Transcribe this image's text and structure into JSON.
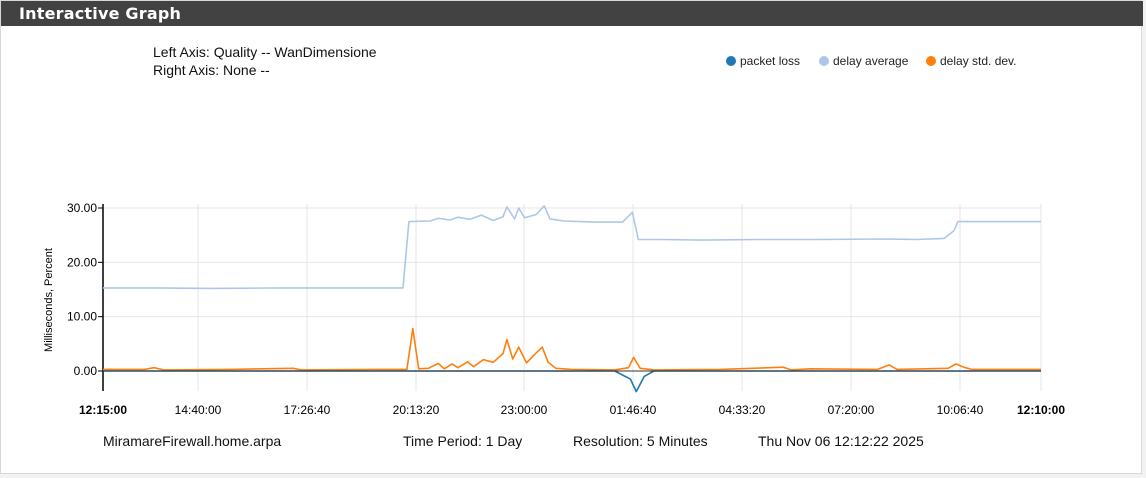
{
  "panel": {
    "title": "Interactive Graph"
  },
  "axis_info": {
    "left": "Left Axis: Quality -- WanDimensione",
    "right": "Right Axis: None --"
  },
  "footer": {
    "host": "MiramareFirewall.home.arpa",
    "period": "Time Period: 1 Day",
    "resolution": "Resolution: 5 Minutes",
    "timestamp": "Thu Nov 06 12:12:22 2025"
  },
  "chart_data": {
    "type": "line",
    "ylabel": "Milliseconds, Percent",
    "ylim": [
      -3.8,
      30.8
    ],
    "yticks": [
      "30.00",
      "20.00",
      "10.00",
      "0.00"
    ],
    "xticks": [
      "12:15:00",
      "14:40:00",
      "17:26:40",
      "20:13:20",
      "23:00:00",
      "01:46:40",
      "04:33:20",
      "07:20:00",
      "10:06:40",
      "12:10:00"
    ],
    "grid": true,
    "legend_position": "top-right",
    "colors": {
      "packet_loss": "#1f77b4",
      "delay_average": "#aec7e8",
      "delay_std_dev": "#ff7f0e"
    },
    "series": [
      {
        "name": "packet loss",
        "points": [
          [
            12.25,
            0
          ],
          [
            25.3,
            0
          ],
          [
            25.7,
            -1.5
          ],
          [
            25.85,
            -3.8
          ],
          [
            26.05,
            -1.0
          ],
          [
            26.3,
            0
          ],
          [
            36.17,
            0
          ]
        ]
      },
      {
        "name": "delay average",
        "points": [
          [
            12.25,
            15.3
          ],
          [
            13.5,
            15.3
          ],
          [
            15.0,
            15.2
          ],
          [
            17.0,
            15.3
          ],
          [
            19.0,
            15.3
          ],
          [
            19.9,
            15.3
          ],
          [
            20.05,
            27.5
          ],
          [
            20.6,
            27.6
          ],
          [
            20.8,
            28.1
          ],
          [
            21.1,
            27.8
          ],
          [
            21.3,
            28.3
          ],
          [
            21.6,
            27.9
          ],
          [
            21.9,
            28.7
          ],
          [
            22.2,
            27.7
          ],
          [
            22.45,
            28.4
          ],
          [
            22.55,
            30.2
          ],
          [
            22.75,
            28.0
          ],
          [
            22.85,
            30.0
          ],
          [
            23.0,
            28.2
          ],
          [
            23.3,
            28.8
          ],
          [
            23.5,
            30.4
          ],
          [
            23.65,
            28.0
          ],
          [
            24.0,
            27.6
          ],
          [
            24.8,
            27.4
          ],
          [
            25.5,
            27.4
          ],
          [
            25.75,
            29.2
          ],
          [
            25.9,
            24.2
          ],
          [
            26.5,
            24.2
          ],
          [
            27.5,
            24.1
          ],
          [
            29.0,
            24.2
          ],
          [
            30.5,
            24.2
          ],
          [
            32.2,
            24.3
          ],
          [
            33.0,
            24.2
          ],
          [
            33.7,
            24.4
          ],
          [
            33.95,
            25.8
          ],
          [
            34.05,
            27.5
          ],
          [
            35.0,
            27.5
          ],
          [
            36.17,
            27.5
          ]
        ]
      },
      {
        "name": "delay std. dev.",
        "points": [
          [
            12.25,
            0.3
          ],
          [
            13.3,
            0.3
          ],
          [
            13.55,
            0.6
          ],
          [
            13.8,
            0.2
          ],
          [
            15.5,
            0.3
          ],
          [
            17.1,
            0.5
          ],
          [
            17.3,
            0.2
          ],
          [
            19.3,
            0.3
          ],
          [
            20.0,
            0.3
          ],
          [
            20.15,
            7.8
          ],
          [
            20.3,
            0.4
          ],
          [
            20.55,
            0.5
          ],
          [
            20.8,
            1.4
          ],
          [
            20.95,
            0.4
          ],
          [
            21.15,
            1.3
          ],
          [
            21.3,
            0.6
          ],
          [
            21.55,
            1.7
          ],
          [
            21.7,
            0.8
          ],
          [
            21.95,
            2.1
          ],
          [
            22.2,
            1.6
          ],
          [
            22.45,
            3.2
          ],
          [
            22.55,
            5.8
          ],
          [
            22.7,
            2.2
          ],
          [
            22.85,
            4.4
          ],
          [
            23.05,
            1.5
          ],
          [
            23.25,
            3.0
          ],
          [
            23.45,
            4.4
          ],
          [
            23.6,
            1.6
          ],
          [
            23.8,
            0.5
          ],
          [
            24.2,
            0.3
          ],
          [
            25.3,
            0.2
          ],
          [
            25.65,
            0.6
          ],
          [
            25.78,
            2.5
          ],
          [
            25.95,
            0.5
          ],
          [
            26.3,
            0.2
          ],
          [
            28.0,
            0.3
          ],
          [
            29.6,
            0.7
          ],
          [
            29.8,
            0.2
          ],
          [
            30.3,
            0.4
          ],
          [
            32.0,
            0.3
          ],
          [
            32.3,
            1.1
          ],
          [
            32.5,
            0.3
          ],
          [
            33.8,
            0.5
          ],
          [
            34.0,
            1.3
          ],
          [
            34.2,
            0.7
          ],
          [
            34.4,
            0.3
          ],
          [
            36.17,
            0.3
          ]
        ]
      }
    ]
  }
}
